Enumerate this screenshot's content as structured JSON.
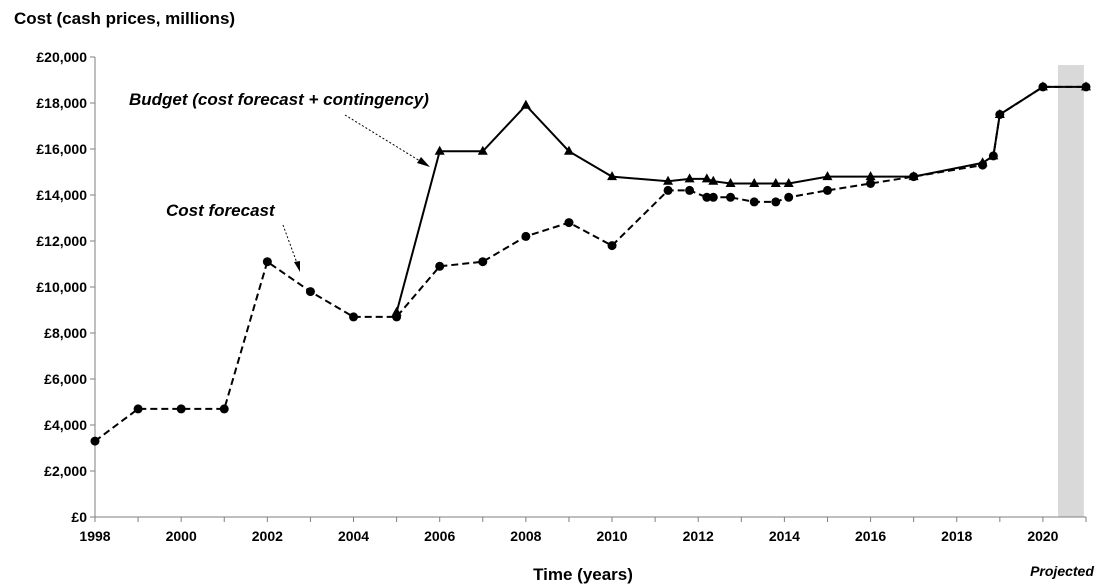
{
  "chart_data": {
    "type": "line",
    "title": "",
    "ylabel": "Cost  (cash prices, millions)",
    "xlabel": "Time (years)",
    "xlim": [
      1998,
      2021
    ],
    "ylim": [
      0,
      20000
    ],
    "x_ticks": [
      "1998",
      "2000",
      "2002",
      "2004",
      "2006",
      "2008",
      "2010",
      "2012",
      "2014",
      "2016",
      "2018",
      "2020"
    ],
    "y_ticks": [
      "£0",
      "£2,000",
      "£4,000",
      "£6,000",
      "£8,000",
      "£10,000",
      "£12,000",
      "£14,000",
      "£16,000",
      "£18,000",
      "£20,000"
    ],
    "grid": false,
    "projected_band": {
      "from": 2020.35,
      "to": 2020.95,
      "label": "Projected",
      "color": "#d9d9d9"
    },
    "series": [
      {
        "name": "Budget (cost forecast + contingency)",
        "style": "solid",
        "marker": "triangle",
        "points": [
          [
            2005,
            8900
          ],
          [
            2006,
            15900
          ],
          [
            2007,
            15900
          ],
          [
            2008,
            17900
          ],
          [
            2009,
            15900
          ],
          [
            2010,
            14800
          ],
          [
            2011.3,
            14600
          ],
          [
            2011.8,
            14700
          ],
          [
            2012.2,
            14700
          ],
          [
            2012.35,
            14600
          ],
          [
            2012.75,
            14500
          ],
          [
            2013.3,
            14500
          ],
          [
            2013.8,
            14500
          ],
          [
            2014.1,
            14500
          ],
          [
            2015,
            14800
          ],
          [
            2016,
            14800
          ],
          [
            2017,
            14800
          ],
          [
            2018.6,
            15400
          ],
          [
            2018.85,
            15700
          ],
          [
            2019,
            17500
          ],
          [
            2020,
            18700
          ],
          [
            2021,
            18700
          ]
        ]
      },
      {
        "name": "Cost forecast",
        "style": "dashed",
        "marker": "circle",
        "points": [
          [
            1998,
            3300
          ],
          [
            1999,
            4700
          ],
          [
            2000,
            4700
          ],
          [
            2001,
            4700
          ],
          [
            2002,
            11100
          ],
          [
            2003,
            9800
          ],
          [
            2004,
            8700
          ],
          [
            2005,
            8700
          ],
          [
            2006,
            10900
          ],
          [
            2007,
            11100
          ],
          [
            2008,
            12200
          ],
          [
            2009,
            12800
          ],
          [
            2010,
            11800
          ],
          [
            2011.3,
            14200
          ],
          [
            2011.8,
            14200
          ],
          [
            2012.2,
            13900
          ],
          [
            2012.35,
            13900
          ],
          [
            2012.75,
            13900
          ],
          [
            2013.3,
            13700
          ],
          [
            2013.8,
            13700
          ],
          [
            2014.1,
            13900
          ],
          [
            2015,
            14200
          ],
          [
            2016,
            14500
          ],
          [
            2017,
            14800
          ],
          [
            2018.6,
            15300
          ],
          [
            2018.85,
            15700
          ],
          [
            2019,
            17500
          ],
          [
            2020,
            18700
          ],
          [
            2021,
            18700
          ]
        ]
      }
    ],
    "annotations": [
      {
        "id": "budget",
        "text": "Budget (cost forecast + contingency)"
      },
      {
        "id": "cost",
        "text": "Cost forecast"
      }
    ]
  }
}
